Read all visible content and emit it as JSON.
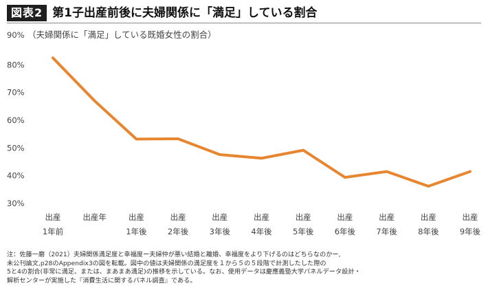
{
  "header": {
    "badge": "図表2",
    "title": "第1子出産前後に夫婦関係に「満足」している割合"
  },
  "chart_data": {
    "type": "line",
    "subtitle": "（夫婦関係に「満足」している既婚女性の割合）",
    "ylim": [
      30,
      90
    ],
    "yticks": [
      "30%",
      "40%",
      "50%",
      "60%",
      "70%",
      "80%",
      "90%"
    ],
    "categories": [
      [
        "出産",
        "1年前"
      ],
      [
        "出産年",
        ""
      ],
      [
        "出産",
        "1年後"
      ],
      [
        "出産",
        "2年後"
      ],
      [
        "出産",
        "3年後"
      ],
      [
        "出産",
        "4年後"
      ],
      [
        "出産",
        "5年後"
      ],
      [
        "出産",
        "6年後"
      ],
      [
        "出産",
        "7年後"
      ],
      [
        "出産",
        "8年後"
      ],
      [
        "出産",
        "9年後"
      ]
    ],
    "series": [
      {
        "values": [
          82.5,
          67.0,
          53.2,
          53.3,
          47.6,
          46.3,
          49.2,
          39.4,
          41.5,
          36.2,
          41.5
        ]
      }
    ],
    "colors": {
      "line": "#E8852F"
    },
    "grid": false,
    "legend": "none"
  },
  "footnote": {
    "lines": [
      "注：佐藤一磨（2021）夫婦関係満足度と幸福度ー夫婦仲が悪い結婚と離婚、幸福度をより下げるのはどちらなのかー,",
      "未公刊論文,p28のAppendix3の図を転載。図中の値は夫婦関係の満足度を１から５の５段階で計測したした際の",
      "5と4の割合(非常に満足、または、まあまあ満足)の推移を示している。なお、使用データは慶應義塾大学パネルデータ設計・",
      "解析センターが実施した『消費生活に関するパネル調査』である。"
    ]
  }
}
